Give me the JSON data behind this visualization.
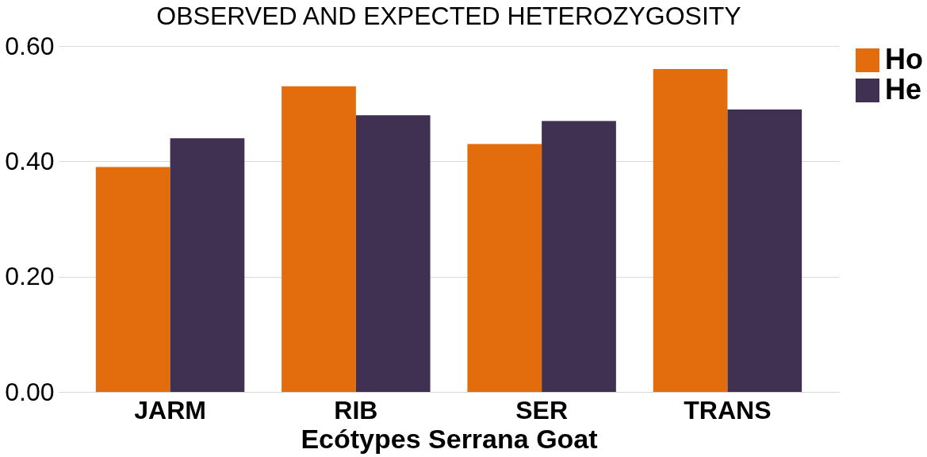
{
  "chart_data": {
    "type": "bar",
    "title": "OBSERVED AND EXPECTED HETEROZYGOSITY",
    "xlabel": "Ecótypes Serrana Goat",
    "categories": [
      "JARM",
      "RIB",
      "SER",
      "TRANS"
    ],
    "series": [
      {
        "name": "Ho",
        "color": "#e36c0d",
        "values": [
          0.39,
          0.53,
          0.43,
          0.56
        ]
      },
      {
        "name": "He",
        "color": "#403152",
        "values": [
          0.44,
          0.48,
          0.47,
          0.49
        ]
      }
    ],
    "ylim": [
      0,
      0.6
    ],
    "yticks": [
      {
        "value": 0,
        "label": "0.00"
      },
      {
        "value": 0.2,
        "label": "0.20"
      },
      {
        "value": 0.4,
        "label": "0.40"
      },
      {
        "value": 0.6,
        "label": "0.60"
      }
    ],
    "grid": "y",
    "legend": "right"
  }
}
